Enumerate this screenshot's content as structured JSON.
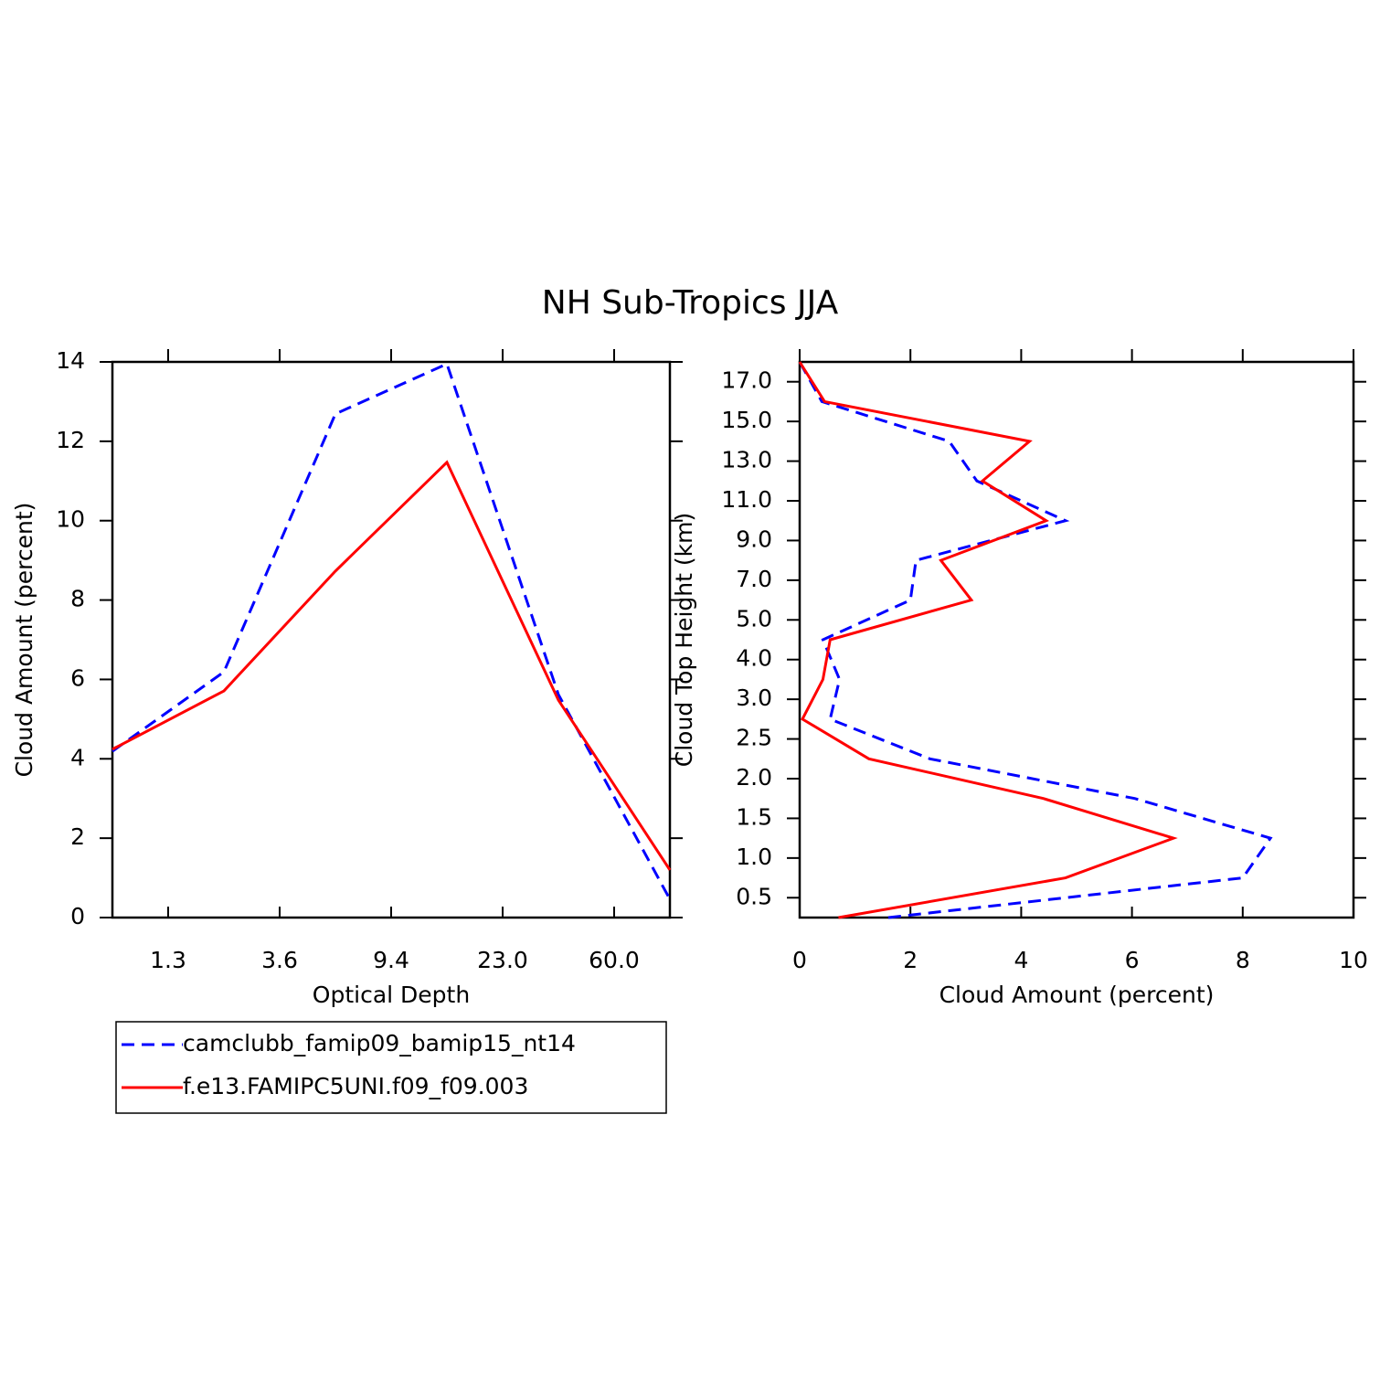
{
  "title": "NH Sub-Tropics JJA",
  "chart_data": [
    {
      "type": "line",
      "x_label": "Optical Depth",
      "y_label": "Cloud Amount (percent)",
      "x": [
        0,
        1,
        2,
        3,
        4,
        5
      ],
      "xlim": [
        0,
        5
      ],
      "xticks": [
        {
          "value": 0.5,
          "label": "1.3"
        },
        {
          "value": 1.5,
          "label": "3.6"
        },
        {
          "value": 2.5,
          "label": "9.4"
        },
        {
          "value": 3.5,
          "label": "23.0"
        },
        {
          "value": 4.5,
          "label": "60.0"
        }
      ],
      "ylim": [
        0,
        14
      ],
      "yticks": [
        0,
        2,
        4,
        6,
        8,
        10,
        12,
        14
      ],
      "series": [
        {
          "name": "camclubb_famip09_bamip15_nt14",
          "color": "#0000ff",
          "style": "dashed",
          "values": [
            4.19,
            6.19,
            12.69,
            13.95,
            5.62,
            0.46
          ]
        },
        {
          "name": "f.e13.FAMIPC5UNI.f09_f09.003",
          "color": "#ff0000",
          "style": "solid",
          "values": [
            4.24,
            5.71,
            8.73,
            11.47,
            5.48,
            1.2
          ]
        }
      ]
    },
    {
      "type": "line",
      "orientation": "horizontal",
      "x_label": "Cloud Amount (percent)",
      "y_label": "Cloud Top Height (km)",
      "y": [
        0,
        1,
        2,
        3,
        4,
        5,
        6,
        7,
        8,
        9,
        10,
        11,
        12,
        13,
        14
      ],
      "ylim": [
        0,
        14
      ],
      "yticks": [
        {
          "value": 0.5,
          "label": "0.5"
        },
        {
          "value": 1.5,
          "label": "1.0"
        },
        {
          "value": 2.5,
          "label": "1.5"
        },
        {
          "value": 3.5,
          "label": "2.0"
        },
        {
          "value": 4.5,
          "label": "2.5"
        },
        {
          "value": 5.5,
          "label": "3.0"
        },
        {
          "value": 6.5,
          "label": "4.0"
        },
        {
          "value": 7.5,
          "label": "5.0"
        },
        {
          "value": 8.5,
          "label": "7.0"
        },
        {
          "value": 9.5,
          "label": "9.0"
        },
        {
          "value": 10.5,
          "label": "11.0"
        },
        {
          "value": 11.5,
          "label": "13.0"
        },
        {
          "value": 12.5,
          "label": "15.0"
        },
        {
          "value": 13.5,
          "label": "17.0"
        }
      ],
      "xlim": [
        0,
        10
      ],
      "xticks": [
        0,
        2,
        4,
        6,
        8,
        10
      ],
      "series": [
        {
          "color": "#0000ff",
          "style": "dashed",
          "values": [
            1.6,
            8.0,
            8.5,
            6.05,
            2.35,
            0.55,
            0.72,
            0.42,
            2.0,
            2.1,
            4.8,
            3.2,
            2.7,
            0.4,
            0
          ]
        },
        {
          "color": "#ff0000",
          "style": "solid",
          "values": [
            0.7,
            4.8,
            6.75,
            4.4,
            1.25,
            0.05,
            0.42,
            0.55,
            3.1,
            2.55,
            4.45,
            3.3,
            4.15,
            0.45,
            0
          ]
        }
      ]
    }
  ]
}
